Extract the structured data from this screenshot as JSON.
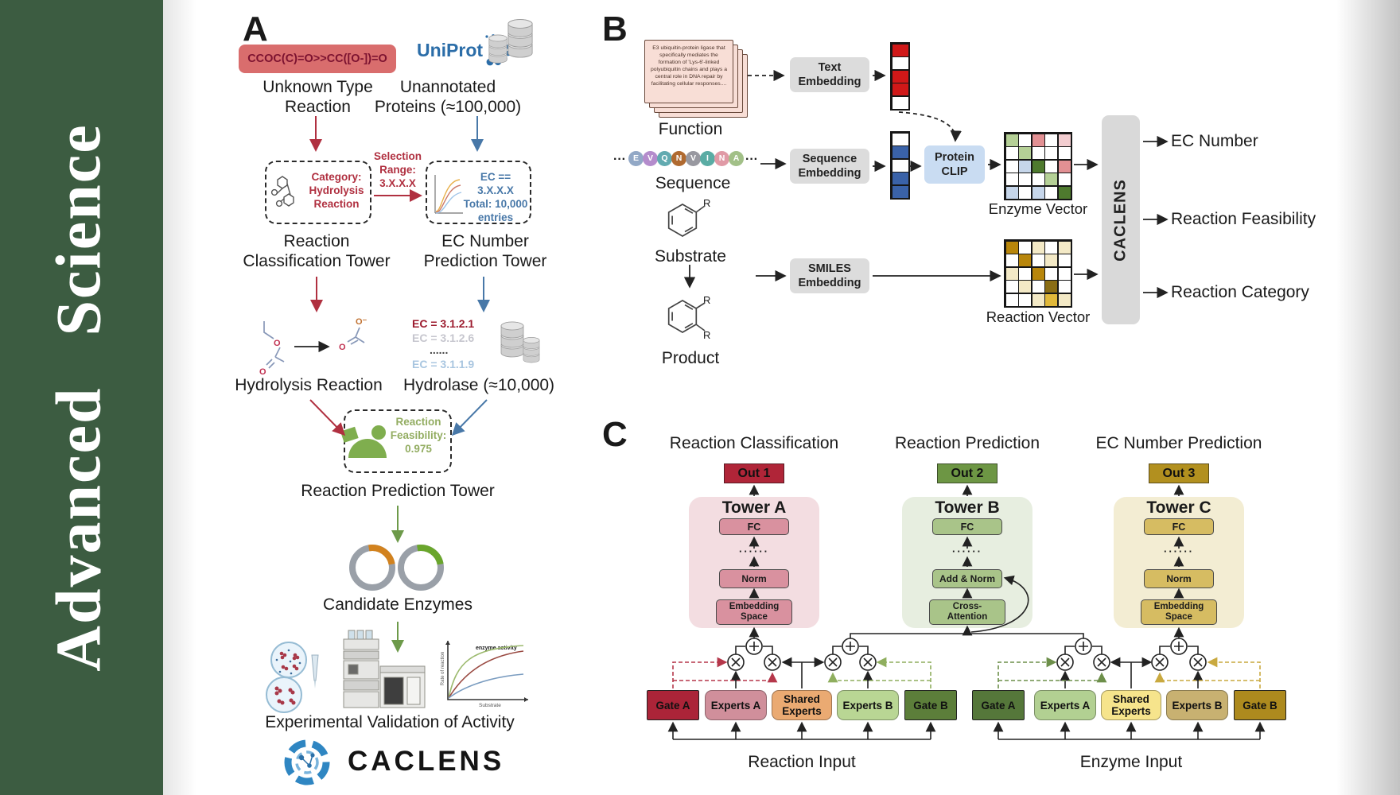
{
  "sidebar": {
    "journal": "Advanced Science"
  },
  "panel_a": {
    "label": "A",
    "smiles": "CCOC(C)=O>>CC([O-])=O",
    "unknown_l1": "Unknown Type",
    "unknown_l2": "Reaction",
    "uniprot": "UniProt",
    "unannotated_l1": "Unannotated",
    "unannotated_l2": "Proteins (≈100,000)",
    "category_box": "Category: Hydrolysis Reaction",
    "selection": "Selection Range: 3.X.X.X",
    "ec_box": "EC == 3.X.X.X Total: 10,000 entries",
    "rct_l1": "Reaction",
    "rct_l2": "Classification Tower",
    "ect_l1": "EC Number",
    "ect_l2": "Prediction Tower",
    "hydrolysis": "Hydrolysis Reaction",
    "ec_list": [
      "EC = 3.1.2.1",
      "EC = 3.1.2.6",
      "......",
      "EC = 3.1.1.9"
    ],
    "hydrolase": "Hydrolase (≈10,000)",
    "enzyme": "Enzyme",
    "feasibility": "Reaction Feasibility: 0.975",
    "rpt": "Reaction Prediction Tower",
    "candidates": "Candidate Enzymes",
    "activity_chart": {
      "title": "enzyme activity",
      "ylabel": "Rate of reaction",
      "xlabel": "Substrate"
    },
    "validation": "Experimental Validation of Activity",
    "logo": "CACLENS",
    "atoms": {
      "o": "O",
      "o_minus": "O⁻"
    }
  },
  "panel_b": {
    "label": "B",
    "function_text": "E3 ubiquitin-protein ligase that specifically mediates the formation of 'Lys-6'-linked polyubiquitin chains and plays a central role in DNA repair by facilitating cellular responses....",
    "function": "Function",
    "ellipsis": "···",
    "sequence": [
      {
        "letter": "E",
        "color": "#92a8c6"
      },
      {
        "letter": "V",
        "color": "#b48ccc"
      },
      {
        "letter": "Q",
        "color": "#62aab0"
      },
      {
        "letter": "N",
        "color": "#b06a30"
      },
      {
        "letter": "V",
        "color": "#9898a0"
      },
      {
        "letter": "I",
        "color": "#5aaca4"
      },
      {
        "letter": "N",
        "color": "#e09aa6"
      },
      {
        "letter": "A",
        "color": "#a2c088"
      }
    ],
    "sequence_label": "Sequence",
    "substrate": "Substrate",
    "product": "Product",
    "r": "R",
    "text_embedding": "Text Embedding",
    "sequence_embedding": "Sequence Embedding",
    "smiles_embedding": "SMILES Embedding",
    "protein_clip": "Protein CLIP",
    "enzyme_vector": "Enzyme Vector",
    "reaction_vector": "Reaction Vector",
    "caclens": "CACLENS",
    "outputs": [
      "EC Number",
      "Reaction Feasibility",
      "Reaction Category"
    ]
  },
  "panel_c": {
    "label": "C",
    "columns": [
      {
        "title": "Reaction Classification",
        "out": "Out 1",
        "tower": "Tower A",
        "fc": "FC",
        "dots": "······",
        "mid": "Norm",
        "bottom": "Embedding Space"
      },
      {
        "title": "Reaction Prediction",
        "out": "Out 2",
        "tower": "Tower B",
        "fc": "FC",
        "dots": "······",
        "mid": "Add & Norm",
        "bottom": "Cross-Attention"
      },
      {
        "title": "EC Number Prediction",
        "out": "Out 3",
        "tower": "Tower C",
        "fc": "FC",
        "dots": "······",
        "mid": "Norm",
        "bottom": "Embedding Space"
      }
    ],
    "moe": [
      {
        "gate_a": "Gate A",
        "experts_a": "Experts A",
        "shared": "Shared Experts",
        "experts_b": "Experts B",
        "gate_b": "Gate B",
        "input": "Reaction Input"
      },
      {
        "gate_a": "Gate A",
        "experts_a": "Experts A",
        "shared": "Shared Experts",
        "experts_b": "Experts B",
        "gate_b": "Gate B",
        "input": "Enzyme Input"
      }
    ]
  },
  "palette": {
    "w": "#ffffff",
    "R": "#d01818",
    "B": "#3a62a8",
    "g": "#b5d096",
    "G": "#4e7a2e",
    "r": "#e29093",
    "p": "#f3cdd0",
    "b": "#c6d6ea",
    "D": "#b8860b",
    "y": "#f3e9c6",
    "O": "#8a6d14",
    "M": "#e0b83a"
  },
  "cells": {
    "text_vector": [
      "R",
      "w",
      "R",
      "R",
      "w"
    ],
    "sequence_vector": [
      "w",
      "B",
      "w",
      "B",
      "B"
    ],
    "enzyme_matrix": [
      "gwrwp",
      "wgwww",
      "wbGwr",
      "wwwgw",
      "bwbwG"
    ],
    "reaction_matrix": [
      "Dwywy",
      "wDwyw",
      "ywDww",
      "wywOw",
      "wwyMy"
    ]
  },
  "colors": {
    "sidebar_bg": "#3c5c41",
    "accent_red": "#b03040",
    "accent_blue": "#4878a8",
    "accent_green": "#6d9a4a",
    "smiles_bg": "#d96d6d",
    "smiles_text": "#7c1230",
    "uniprot_blue": "#2b6da8",
    "ec_red": "#9c1b2e",
    "ec_gray": "#c6c6ce",
    "ec_blue": "#a9c6e0",
    "feasibility_green": "#93ad62",
    "gray_box": "#dcdcdc",
    "clip_bg": "#c9dcf2",
    "caclens_bg": "#d9d9d9",
    "out1": "#b02538",
    "out2": "#6d9644",
    "out3": "#b2901f",
    "tower_a_bg": "#f3dde1",
    "tower_b_bg": "#e7eee0",
    "tower_c_bg": "#f3edd3",
    "tower_a_box": "#d9919f",
    "tower_b_box": "#a9c489",
    "tower_c_box": "#d6bc62",
    "moe_left": {
      "gate_a": "#ab2438",
      "experts_a": "#d08f9b",
      "shared": "#eaaa72",
      "experts_b": "#b9d694",
      "gate_b": "#5c7e3a"
    },
    "moe_right": {
      "gate_a": "#55773a",
      "experts_a": "#b2d092",
      "shared": "#f6e48c",
      "experts_b": "#c8b171",
      "gate_b": "#ad8a1e"
    }
  },
  "icons": {
    "database": "cylinder-stack",
    "uniprot": "dotted-swirl-logo",
    "enzyme": "green-enzyme-blob",
    "plasmid": "circular-plasmid-ring",
    "petri_dish": "colony-dish",
    "hplc": "chromatography-machine",
    "caclens_logo": "blue-aperture-molecule",
    "benzene": "hexagon-ring",
    "sum": "circle-plus",
    "product_op": "circle-times"
  }
}
